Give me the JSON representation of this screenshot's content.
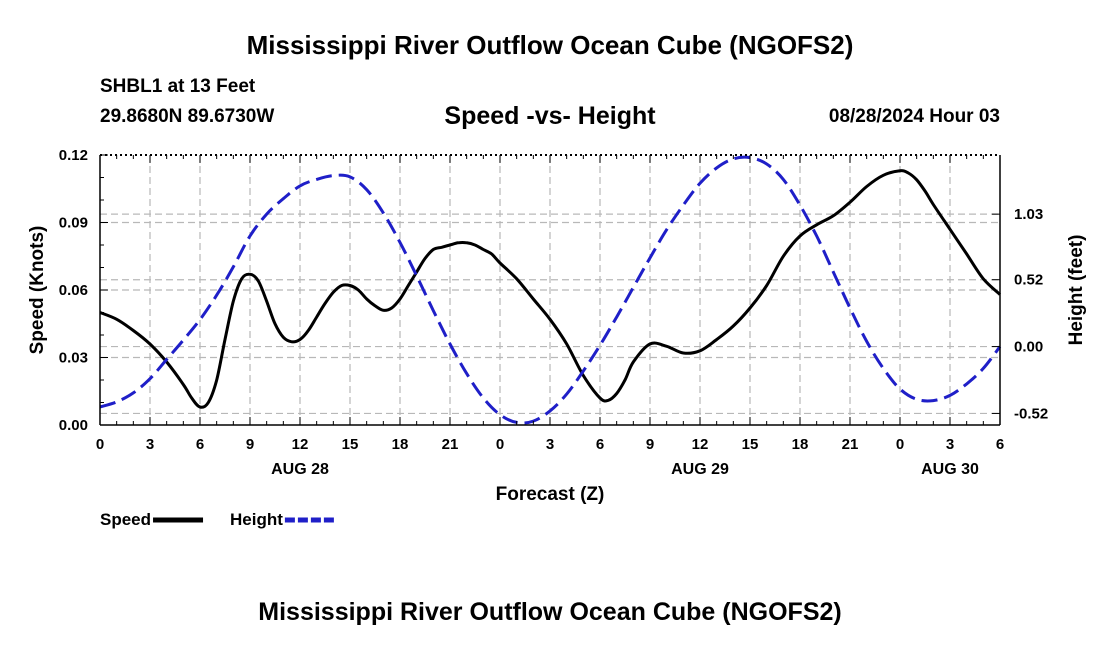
{
  "page": {
    "title": "Mississippi River Outflow Ocean Cube (NGOFS2)",
    "footer_title": "Mississippi River Outflow Ocean Cube (NGOFS2)",
    "station": "SHBL1 at 13 Feet",
    "coords": "29.8680N  89.6730W",
    "datetime": "08/28/2024 Hour 03"
  },
  "chart_data": {
    "type": "line",
    "title": "Speed -vs- Height",
    "xlabel": "Forecast (Z)",
    "ylabel": "Speed (Knots)",
    "y2label": "Height (feet)",
    "xlim": [
      0,
      54
    ],
    "ylim": [
      0,
      0.12
    ],
    "y2lim": [
      -0.61,
      1.49
    ],
    "xticks": [
      0,
      3,
      6,
      9,
      12,
      15,
      18,
      21,
      24,
      27,
      30,
      33,
      36,
      39,
      42,
      45,
      48,
      51,
      54
    ],
    "xtick_labels": [
      "0",
      "3",
      "6",
      "9",
      "12",
      "15",
      "18",
      "21",
      "0",
      "3",
      "6",
      "9",
      "12",
      "15",
      "18",
      "21",
      "0",
      "3",
      "6"
    ],
    "day_labels": [
      {
        "x": 12,
        "label": "AUG 28"
      },
      {
        "x": 36,
        "label": "AUG 29"
      },
      {
        "x": 51,
        "label": "AUG 30"
      }
    ],
    "yticks": [
      0,
      0.03,
      0.06,
      0.09,
      0.12
    ],
    "ytick_labels": [
      "0.00",
      "0.03",
      "0.06",
      "0.09",
      "0.12"
    ],
    "y2ticks": [
      -0.52,
      0.0,
      0.52,
      1.03
    ],
    "y2tick_labels": [
      "-0.52",
      "0.00",
      "0.52",
      "1.03"
    ],
    "grid": true,
    "series": [
      {
        "name": "Speed",
        "axis": "left",
        "color": "#000000",
        "dash": "solid",
        "x": [
          0,
          1,
          2,
          3,
          4,
          5,
          5.5,
          6,
          6.5,
          7,
          7.5,
          8,
          8.5,
          9,
          9.5,
          10,
          10.5,
          11,
          11.5,
          12,
          12.5,
          13,
          13.5,
          14,
          14.5,
          15,
          15.5,
          16,
          16.5,
          17,
          17.5,
          18,
          18.5,
          19,
          19.5,
          20,
          20.5,
          21,
          21.5,
          22,
          22.5,
          23,
          23.5,
          24,
          25,
          26,
          27,
          28,
          29,
          30,
          30.5,
          31,
          31.5,
          32,
          33,
          34,
          35,
          36,
          37,
          38,
          39,
          40,
          41,
          42,
          43,
          44,
          45,
          46,
          47,
          48,
          48.5,
          49,
          49.5,
          50,
          51,
          52,
          53,
          54
        ],
        "y": [
          0.05,
          0.047,
          0.042,
          0.036,
          0.028,
          0.018,
          0.012,
          0.008,
          0.01,
          0.02,
          0.038,
          0.055,
          0.065,
          0.067,
          0.064,
          0.055,
          0.045,
          0.039,
          0.037,
          0.038,
          0.042,
          0.048,
          0.054,
          0.059,
          0.062,
          0.062,
          0.06,
          0.056,
          0.053,
          0.051,
          0.052,
          0.056,
          0.062,
          0.068,
          0.074,
          0.078,
          0.079,
          0.08,
          0.081,
          0.081,
          0.08,
          0.078,
          0.076,
          0.072,
          0.065,
          0.056,
          0.047,
          0.036,
          0.022,
          0.012,
          0.011,
          0.014,
          0.02,
          0.028,
          0.036,
          0.035,
          0.032,
          0.033,
          0.038,
          0.044,
          0.052,
          0.062,
          0.075,
          0.084,
          0.089,
          0.093,
          0.099,
          0.106,
          0.111,
          0.113,
          0.112,
          0.109,
          0.104,
          0.098,
          0.087,
          0.076,
          0.065,
          0.058
        ]
      },
      {
        "name": "Height",
        "axis": "right",
        "color": "#1f1fc8",
        "dash": "dashed",
        "x": [
          0,
          1,
          2,
          3,
          4,
          5,
          6,
          7,
          8,
          9,
          10,
          11,
          12,
          13,
          14,
          15,
          16,
          17,
          18,
          19,
          20,
          21,
          22,
          23,
          24,
          25,
          26,
          27,
          28,
          29,
          30,
          31,
          32,
          33,
          34,
          35,
          36,
          37,
          38,
          39,
          40,
          41,
          42,
          43,
          44,
          45,
          46,
          47,
          48,
          49,
          50,
          51,
          52,
          53,
          54
        ],
        "y": [
          -0.47,
          -0.43,
          -0.36,
          -0.25,
          -0.1,
          0.05,
          0.21,
          0.4,
          0.62,
          0.86,
          1.03,
          1.15,
          1.25,
          1.3,
          1.33,
          1.32,
          1.22,
          1.04,
          0.81,
          0.55,
          0.28,
          0.02,
          -0.21,
          -0.4,
          -0.53,
          -0.59,
          -0.58,
          -0.5,
          -0.37,
          -0.19,
          0.01,
          0.23,
          0.46,
          0.69,
          0.91,
          1.1,
          1.27,
          1.39,
          1.46,
          1.47,
          1.42,
          1.3,
          1.1,
          0.86,
          0.58,
          0.3,
          0.04,
          -0.17,
          -0.33,
          -0.41,
          -0.42,
          -0.38,
          -0.29,
          -0.17,
          0.0
        ]
      }
    ],
    "legend": [
      {
        "name": "Speed",
        "color": "#000000",
        "dash": "solid"
      },
      {
        "name": "Height",
        "color": "#1f1fc8",
        "dash": "dashed"
      }
    ]
  }
}
